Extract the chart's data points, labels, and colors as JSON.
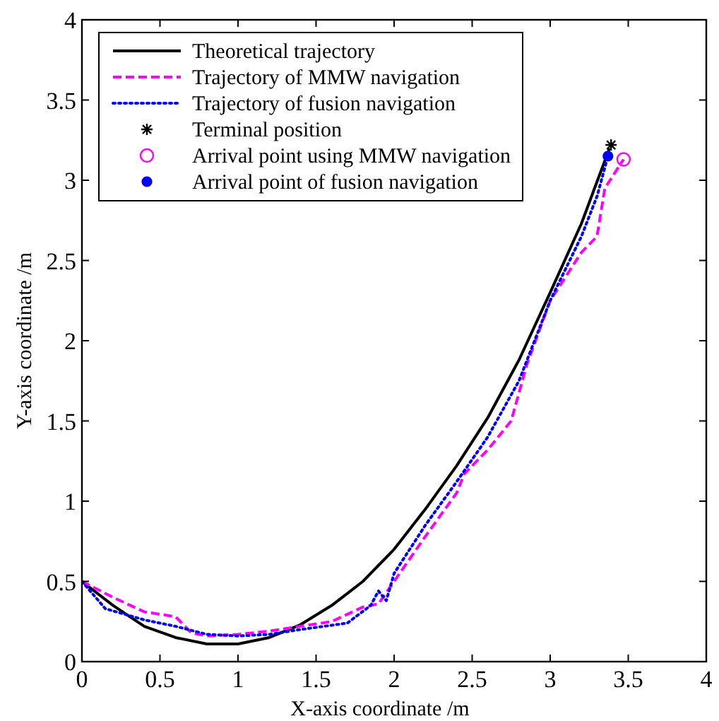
{
  "chart_data": {
    "type": "line",
    "xlabel": "X-axis coordinate /m",
    "ylabel": "Y-axis coordinate /m",
    "xlim": [
      0,
      4
    ],
    "ylim": [
      0,
      4
    ],
    "xticks": [
      0,
      0.5,
      1,
      1.5,
      2,
      2.5,
      3,
      3.5,
      4
    ],
    "yticks": [
      0,
      0.5,
      1,
      1.5,
      2,
      2.5,
      3,
      3.5,
      4
    ],
    "grid": false,
    "legend": "top left",
    "series": [
      {
        "name": "Theoretical trajectory",
        "color": "#000000",
        "line_style": "solid",
        "x": [
          0,
          0.2,
          0.4,
          0.6,
          0.8,
          1.0,
          1.2,
          1.4,
          1.6,
          1.8,
          2.0,
          2.2,
          2.4,
          2.6,
          2.8,
          3.0,
          3.2,
          3.38
        ],
        "values": [
          0.5,
          0.35,
          0.22,
          0.15,
          0.11,
          0.11,
          0.15,
          0.23,
          0.35,
          0.5,
          0.7,
          0.95,
          1.22,
          1.52,
          1.88,
          2.3,
          2.73,
          3.2
        ]
      },
      {
        "name": "Trajectory of MMW navigation",
        "color": "#ff00ff",
        "line_style": "dashed",
        "x": [
          0,
          0.2,
          0.4,
          0.6,
          0.7,
          0.8,
          1.0,
          1.2,
          1.4,
          1.6,
          1.8,
          1.9,
          2.0,
          2.2,
          2.4,
          2.45,
          2.6,
          2.75,
          2.85,
          3.0,
          3.2,
          3.3,
          3.35,
          3.47
        ],
        "values": [
          0.5,
          0.4,
          0.31,
          0.28,
          0.18,
          0.16,
          0.17,
          0.19,
          0.22,
          0.25,
          0.34,
          0.36,
          0.5,
          0.78,
          1.05,
          1.17,
          1.32,
          1.5,
          1.85,
          2.25,
          2.55,
          2.65,
          2.95,
          3.13
        ]
      },
      {
        "name": "Trajectory of fusion navigation",
        "color": "#0000ff",
        "line_style": "dotted",
        "x": [
          0,
          0.15,
          0.4,
          0.6,
          0.8,
          1.0,
          1.2,
          1.4,
          1.7,
          1.85,
          1.9,
          1.95,
          2.0,
          2.2,
          2.4,
          2.6,
          2.8,
          3.0,
          3.2,
          3.3,
          3.37
        ],
        "values": [
          0.5,
          0.33,
          0.26,
          0.22,
          0.17,
          0.16,
          0.17,
          0.2,
          0.24,
          0.35,
          0.44,
          0.38,
          0.55,
          0.85,
          1.12,
          1.4,
          1.75,
          2.25,
          2.65,
          2.9,
          3.15
        ]
      },
      {
        "name": "Terminal position",
        "type": "scatter",
        "color": "#000000",
        "marker": "cross",
        "x": [
          3.39
        ],
        "values": [
          3.22
        ]
      },
      {
        "name": "Arrival point using MMW navigation",
        "type": "scatter",
        "color": "#ff00ff",
        "marker": "circle",
        "x": [
          3.47
        ],
        "values": [
          3.13
        ]
      },
      {
        "name": "Arrival point of fusion navigation",
        "type": "scatter",
        "color": "#0000ff",
        "marker": "circle",
        "x": [
          3.37
        ],
        "values": [
          3.15
        ]
      }
    ]
  }
}
